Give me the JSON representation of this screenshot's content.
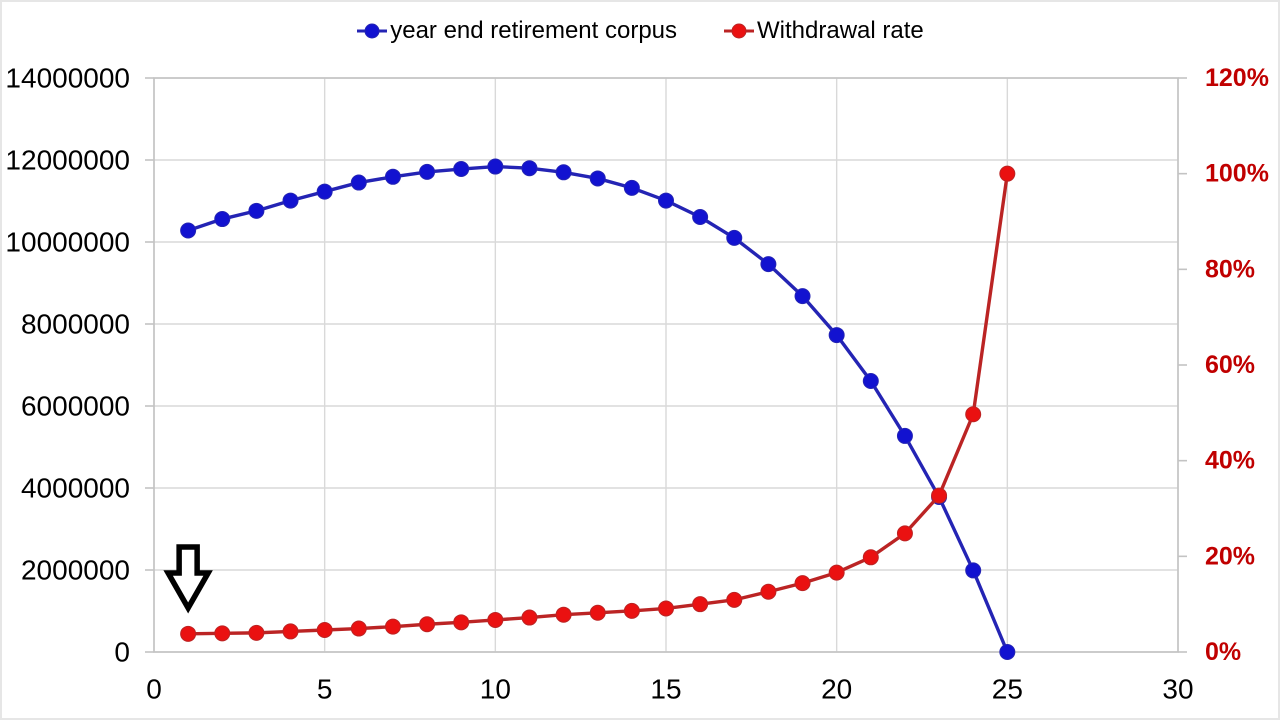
{
  "chart_data": {
    "type": "line",
    "title": "",
    "x": [
      1,
      2,
      3,
      4,
      5,
      6,
      7,
      8,
      9,
      10,
      11,
      12,
      13,
      14,
      15,
      16,
      17,
      18,
      19,
      20,
      21,
      22,
      23,
      24,
      25
    ],
    "series": [
      {
        "name": "year end retirement corpus",
        "axis": "left",
        "marker_color": "#1212d0",
        "line_color": "#2424b4",
        "values": [
          10280000,
          10560000,
          10760000,
          11010000,
          11230000,
          11450000,
          11590000,
          11710000,
          11780000,
          11840000,
          11800000,
          11700000,
          11550000,
          11320000,
          11010000,
          10610000,
          10100000,
          9460000,
          8680000,
          7730000,
          6610000,
          5270000,
          3780000,
          1990000,
          0
        ]
      },
      {
        "name": "Withdrawal rate",
        "axis": "right",
        "marker_color": "#ea1111",
        "line_color": "#bb2424",
        "values": [
          3.8,
          3.9,
          4.0,
          4.3,
          4.6,
          4.9,
          5.3,
          5.8,
          6.2,
          6.7,
          7.2,
          7.8,
          8.2,
          8.6,
          9.1,
          10.0,
          10.9,
          12.6,
          14.4,
          16.6,
          19.8,
          24.8,
          32.7,
          49.7,
          100.0
        ]
      }
    ],
    "left_axis": {
      "min": 0,
      "max": 14000000,
      "tick_values": [
        0,
        2000000,
        4000000,
        6000000,
        8000000,
        10000000,
        12000000,
        14000000
      ],
      "tick_labels": [
        "0",
        "2000000",
        "4000000",
        "6000000",
        "8000000",
        "10000000",
        "12000000",
        "14000000"
      ],
      "label_color": "#000000"
    },
    "right_axis": {
      "min": 0,
      "max": 120,
      "tick_values": [
        0,
        20,
        40,
        60,
        80,
        100,
        120
      ],
      "tick_labels": [
        "0%",
        "20%",
        "40%",
        "60%",
        "80%",
        "100%",
        "120%"
      ],
      "label_color": "#c00000"
    },
    "x_axis": {
      "min": 0,
      "max": 30,
      "tick_values": [
        0,
        5,
        10,
        15,
        20,
        25,
        30
      ],
      "tick_labels": [
        "0",
        "5",
        "10",
        "15",
        "20",
        "25",
        "30"
      ],
      "label_color": "#000000"
    },
    "grid": true,
    "legend_position": "top",
    "annotation": {
      "type": "down-arrow",
      "target_series": "Withdrawal rate",
      "target_x": 1,
      "fill": "#ffffff",
      "outline": "#000000"
    },
    "style": {
      "grid_color": "#d9d9d9",
      "plot_border_color": "#c3c3c3",
      "background": "#ffffff"
    }
  }
}
